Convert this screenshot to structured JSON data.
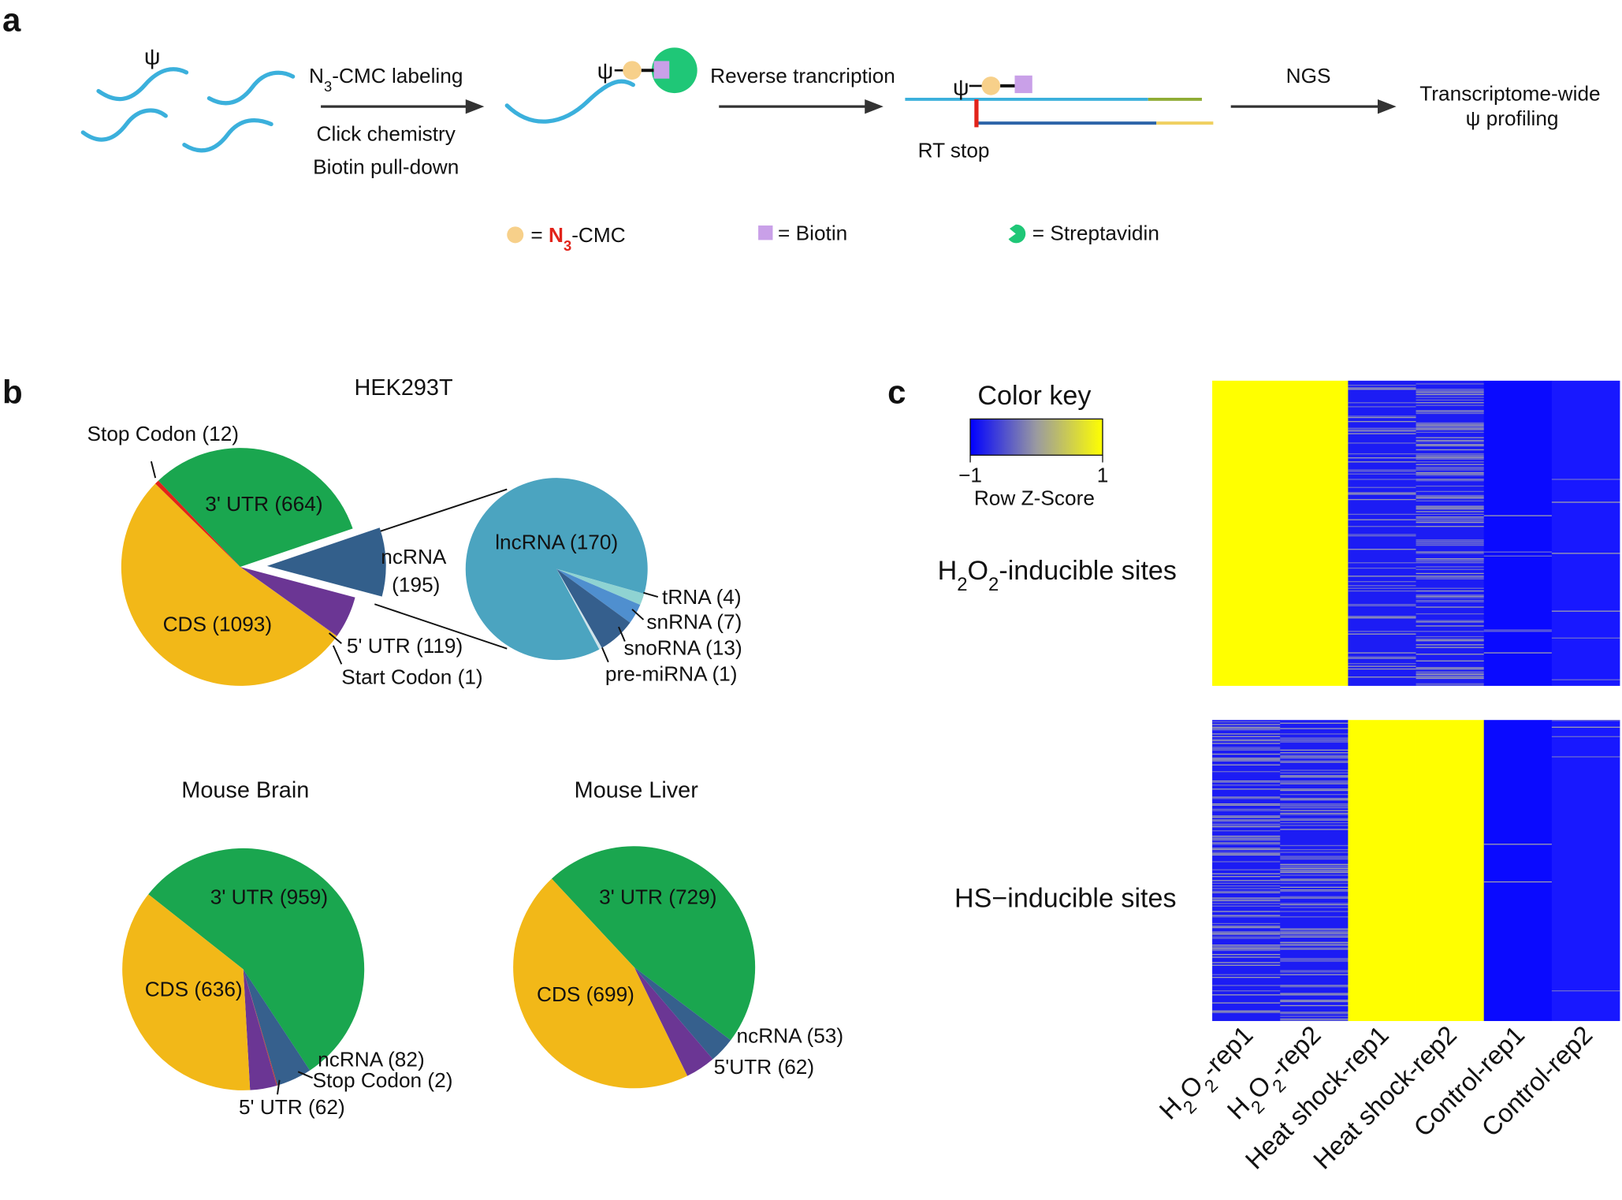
{
  "panel_a": {
    "label": "a",
    "psi": "ψ",
    "labeling": [
      "N",
      "3",
      "-CMC labeling"
    ],
    "click": "Click chemistry",
    "pulldown": "Biotin pull-down",
    "rt": "Reverse trancription",
    "rt_stop": "RT stop",
    "ngs": "NGS",
    "result": [
      "Transcriptome-wide",
      "ψ profiling"
    ],
    "legend": {
      "cmc": [
        "= ",
        "N",
        "3",
        "-CMC"
      ],
      "biotin": "= Biotin",
      "streptavidin": "= Streptavidin"
    }
  },
  "panel_b": {
    "label": "b"
  },
  "chart_data": [
    {
      "type": "pie",
      "title": "HEK293T",
      "categories": [
        "3' UTR (664)",
        "ncRNA (195)",
        "5' UTR (119)",
        "Start Codon (1)",
        "CDS (1093)",
        "Stop Codon (12)"
      ],
      "values": [
        664,
        195,
        119,
        1,
        1093,
        12
      ],
      "colors": [
        "#1aa64f",
        "#335f8b",
        "#6b3694",
        "#7b2f8f",
        "#f2b818",
        "#e2231a"
      ]
    },
    {
      "type": "pie",
      "categories": [
        "lncRNA (170)",
        "tRNA (4)",
        "snRNA (7)",
        "snoRNA (13)",
        "pre-miRNA (1)"
      ],
      "values": [
        170,
        4,
        7,
        13,
        1
      ],
      "colors": [
        "#4ba4c0",
        "#8fd3d2",
        "#4f8fcf",
        "#355f8d",
        "#cfe3ea"
      ]
    },
    {
      "type": "pie",
      "title": "Mouse Brain",
      "categories": [
        "3' UTR (959)",
        "ncRNA (82)",
        "Stop Codon (2)",
        "5' UTR (62)",
        "CDS (636)"
      ],
      "values": [
        959,
        82,
        2,
        62,
        636
      ],
      "colors": [
        "#1aa64f",
        "#36608d",
        "#c0392b",
        "#6b3694",
        "#f2b818"
      ]
    },
    {
      "type": "pie",
      "title": "Mouse Liver",
      "categories": [
        "3' UTR (729)",
        "ncRNA (53)",
        "5'UTR (62)",
        "CDS (699)"
      ],
      "values": [
        729,
        53,
        62,
        699
      ],
      "colors": [
        "#1aa64f",
        "#36608d",
        "#6b3694",
        "#f2b818"
      ]
    }
  ],
  "panel_c": {
    "label": "c",
    "color_key": {
      "title": "Color key",
      "lim": [
        -1,
        1
      ],
      "ticks": [
        {
          "value": -1,
          "label": "−1"
        },
        1
      ],
      "label": "Row Z-Score"
    },
    "row_labels": [
      [
        "H",
        "2",
        "O",
        "2",
        "-inducible sites"
      ],
      [
        "HS−inducible sites"
      ]
    ],
    "columns": [
      [
        "H",
        "2",
        "O",
        "2",
        "-rep1"
      ],
      [
        "H",
        "2",
        "O",
        "2",
        "-rep2"
      ],
      [
        "Heat shock-rep1"
      ],
      [
        "Heat shock-rep2"
      ],
      [
        "Control-rep1"
      ],
      [
        "Control-rep2"
      ]
    ]
  }
}
